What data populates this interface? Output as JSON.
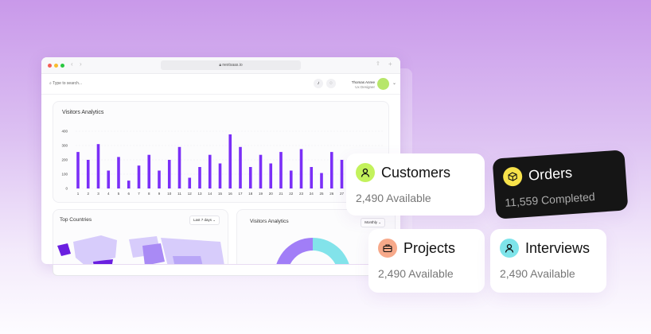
{
  "browser": {
    "url": "nextsaas.io"
  },
  "topbar": {
    "search_placeholder": "Type to search...",
    "user_name": "Thomas Anree",
    "user_role": "Ux Designer"
  },
  "visitors_chart": {
    "title": "Visitors Analytics"
  },
  "top_countries": {
    "title": "Top Countries",
    "filter": "Last 7 days"
  },
  "visitors_donut": {
    "title": "Visitors Analytics",
    "filter": "Monthly"
  },
  "chart_data": {
    "type": "bar",
    "title": "Visitors Analytics",
    "categories": [
      "1",
      "2",
      "3",
      "4",
      "5",
      "6",
      "7",
      "8",
      "9",
      "10",
      "11",
      "12",
      "13",
      "14",
      "15",
      "16",
      "17",
      "18",
      "19",
      "20",
      "21",
      "22",
      "23",
      "24",
      "25",
      "26",
      "27"
    ],
    "values": [
      255,
      200,
      310,
      125,
      220,
      55,
      160,
      235,
      125,
      200,
      290,
      75,
      150,
      235,
      175,
      378,
      290,
      150,
      235,
      175,
      255,
      125,
      275,
      150,
      108,
      255,
      200
    ],
    "yticks": [
      0,
      100,
      200,
      300,
      400
    ],
    "ylim": [
      0,
      400
    ],
    "grid": true,
    "color": "#7b2ff7"
  },
  "stats": [
    {
      "label": "Customers",
      "sub": "2,490 Available",
      "icon": "user-icon",
      "color": "#c3f25c"
    },
    {
      "label": "Orders",
      "sub": "11,559 Completed",
      "icon": "box-icon",
      "color": "#f7e24a"
    },
    {
      "label": "Projects",
      "sub": "2,490 Available",
      "icon": "briefcase-icon",
      "color": "#f7a98a"
    },
    {
      "label": "Interviews",
      "sub": "2,490 Available",
      "icon": "user-icon",
      "color": "#7ee4ea"
    }
  ]
}
